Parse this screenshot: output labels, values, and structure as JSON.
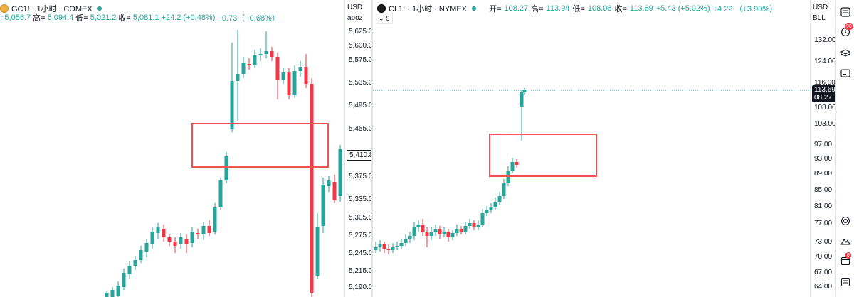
{
  "left": {
    "symbol": "GC1! · 1小时 · COMEX",
    "open_label": "",
    "open": "=5,056.7",
    "high_label": "高=",
    "high": "5,094.4",
    "low_label": "低=",
    "low": "5,021.2",
    "close_label": "收=",
    "close": "5,081.1",
    "change": "+24.2 (+0.48%)",
    "change2": "−0.73（−0.68%）",
    "currency": "USD",
    "unit": "apoz",
    "current_price": "5,410.8",
    "ticks": [
      "5,625.0",
      "5,600.0",
      "5,575.0",
      "5,535.0",
      "5,495.0",
      "5,455.0",
      "5,375.0",
      "5,335.0",
      "5,305.0",
      "5,275.0",
      "5,245.0",
      "5,215.0",
      "5,190.0"
    ],
    "colors": {
      "up": "#26a69a",
      "down": "#f23645",
      "box": "#ef5350"
    }
  },
  "right": {
    "symbol": "CL1! · 1小时 · NYMEX",
    "open_label": "开=",
    "open": "108.27",
    "high_label": "高=",
    "high": "113.94",
    "low_label": "低=",
    "low": "108.06",
    "close_label": "收=",
    "close": "113.69",
    "change": "+5.43 (+5.02%)",
    "change2": "+4.22 （+3.90%）",
    "interval_count": "5",
    "currency": "USD",
    "unit": "BLL",
    "current_price": "113.69",
    "countdown": "08:27",
    "ticks": [
      "132.00",
      "124.00",
      "116.00",
      "108.00",
      "103.00",
      "97.00",
      "93.00",
      "89.00",
      "85.00",
      "81.00",
      "77.00",
      "73.00",
      "70.00",
      "67.00",
      "64.00"
    ],
    "colors": {
      "up": "#26a69a",
      "down": "#f23645",
      "box": "#ef5350"
    }
  },
  "sidebar": {
    "badge_count": "99",
    "alert_badge": "6",
    "icons": [
      "watchlist-icon",
      "alerts-icon",
      "layers-icon",
      "news-icon",
      "target-icon",
      "ideas-icon",
      "calendar-icon",
      "notifications-icon"
    ]
  }
}
